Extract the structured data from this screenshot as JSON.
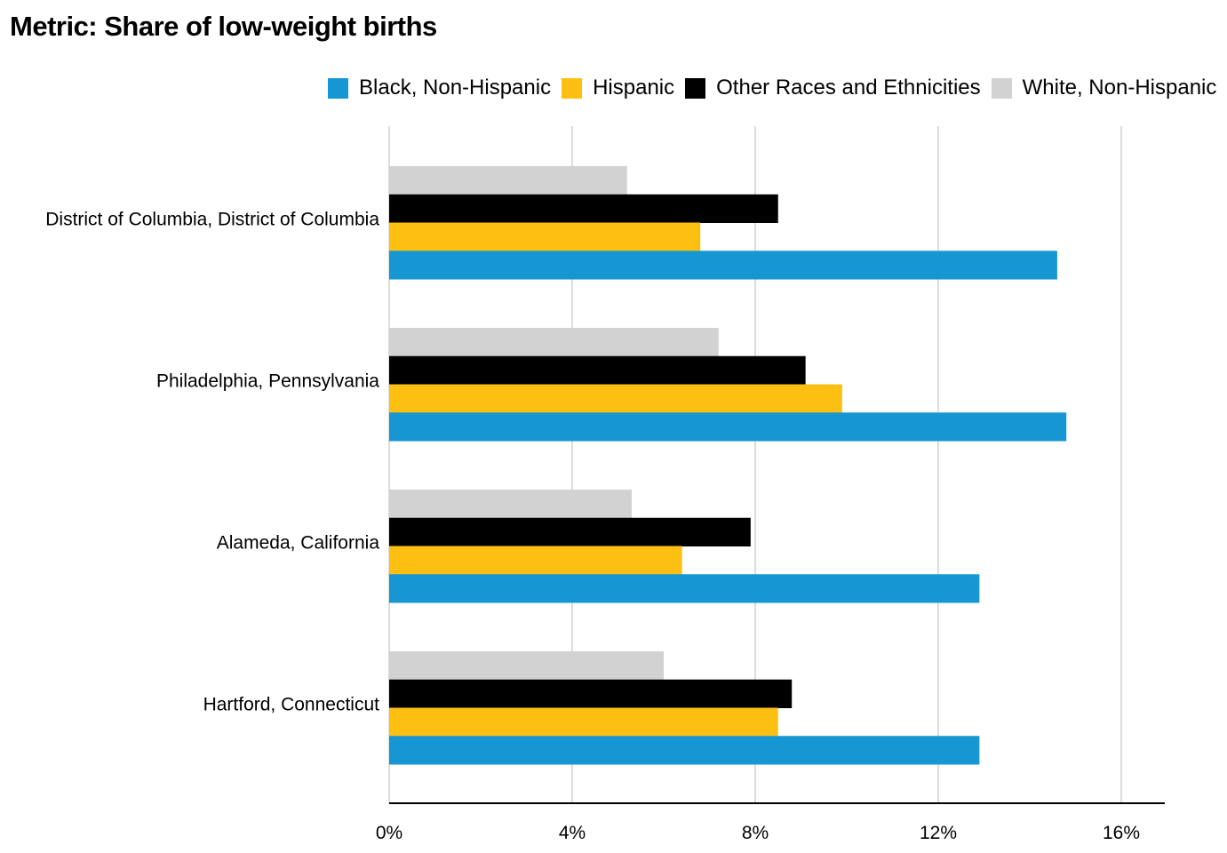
{
  "title": "Metric: Share of low-weight births",
  "colors": {
    "Black, Non-Hispanic": "#1696d2",
    "Hispanic": "#fdbf11",
    "Other Races and Ethnicities": "#000000",
    "White, Non-Hispanic": "#d2d2d2",
    "gridline": "#dedddd",
    "axis": "#000000"
  },
  "legend": [
    {
      "label": "Black, Non-Hispanic",
      "color": "#1696d2"
    },
    {
      "label": "Hispanic",
      "color": "#fdbf11"
    },
    {
      "label": "Other Races and Ethnicities",
      "color": "#000000"
    },
    {
      "label": "White, Non-Hispanic",
      "color": "#d2d2d2"
    }
  ],
  "chart_data": {
    "type": "bar",
    "orientation": "horizontal",
    "title": "Metric: Share of low-weight births",
    "categories": [
      "District of Columbia, District of Columbia",
      "Philadelphia, Pennsylvania",
      "Alameda, California",
      "Hartford, Connecticut"
    ],
    "series": [
      {
        "name": "Black, Non-Hispanic",
        "values": [
          14.6,
          14.8,
          12.9,
          12.9
        ]
      },
      {
        "name": "Hispanic",
        "values": [
          6.8,
          9.9,
          6.4,
          8.5
        ]
      },
      {
        "name": "Other Races and Ethnicities",
        "values": [
          8.5,
          9.1,
          7.9,
          8.8
        ]
      },
      {
        "name": "White, Non-Hispanic",
        "values": [
          5.2,
          7.2,
          5.3,
          6.0
        ]
      }
    ],
    "xlim": [
      0,
      17
    ],
    "xticks": [
      0,
      4,
      8,
      12,
      16
    ],
    "xtick_labels": [
      "0%",
      "4%",
      "8%",
      "12%",
      "16%"
    ],
    "grid": true,
    "legend_position": "top"
  }
}
